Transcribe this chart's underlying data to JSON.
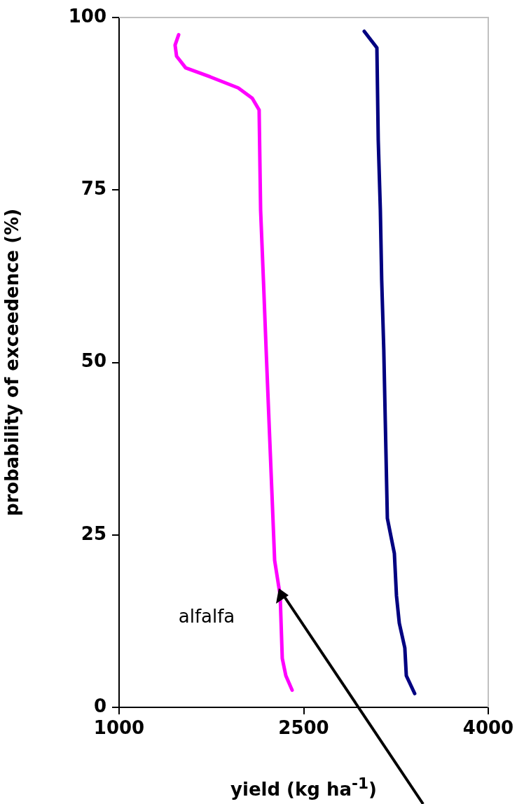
{
  "chart_data": {
    "type": "line",
    "xlabel": "yield (kg ha$^{-1}$)",
    "ylabel": "probability of exceedence (%)",
    "xlim": [
      1000,
      4000
    ],
    "xticks": [
      1000,
      2500,
      4000
    ],
    "ylim": [
      0,
      100
    ],
    "yticks": [
      0,
      25,
      50,
      75,
      100
    ],
    "grid": false,
    "legend": false,
    "marker": "none",
    "line_style": "solid",
    "series": [
      {
        "color": "#ff00ff",
        "x": [
          1484,
          1455,
          1467,
          1541,
          1740,
          1968,
          2082,
          2138,
          2150,
          2173,
          2195,
          2218,
          2241,
          2264,
          2309,
          2326,
          2355,
          2406
        ],
        "values": [
          97.5,
          96,
          94.4,
          92.7,
          91.4,
          89.8,
          88.3,
          86.6,
          72.1,
          61.9,
          51.8,
          41.6,
          31.5,
          21.3,
          16.2,
          7.1,
          4.6,
          2.5
        ]
      },
      {
        "color": "#000080",
        "x": [
          2992,
          3095,
          3106,
          3123,
          3134,
          3151,
          3163,
          3180,
          3237,
          3254,
          3277,
          3322,
          3334,
          3402
        ],
        "values": [
          98,
          95.6,
          82.2,
          72.1,
          61.9,
          51.8,
          41.6,
          27.4,
          22.3,
          16.2,
          12.2,
          8.6,
          4.6,
          2
        ]
      }
    ],
    "annotations": [
      "alfalfa"
    ]
  }
}
